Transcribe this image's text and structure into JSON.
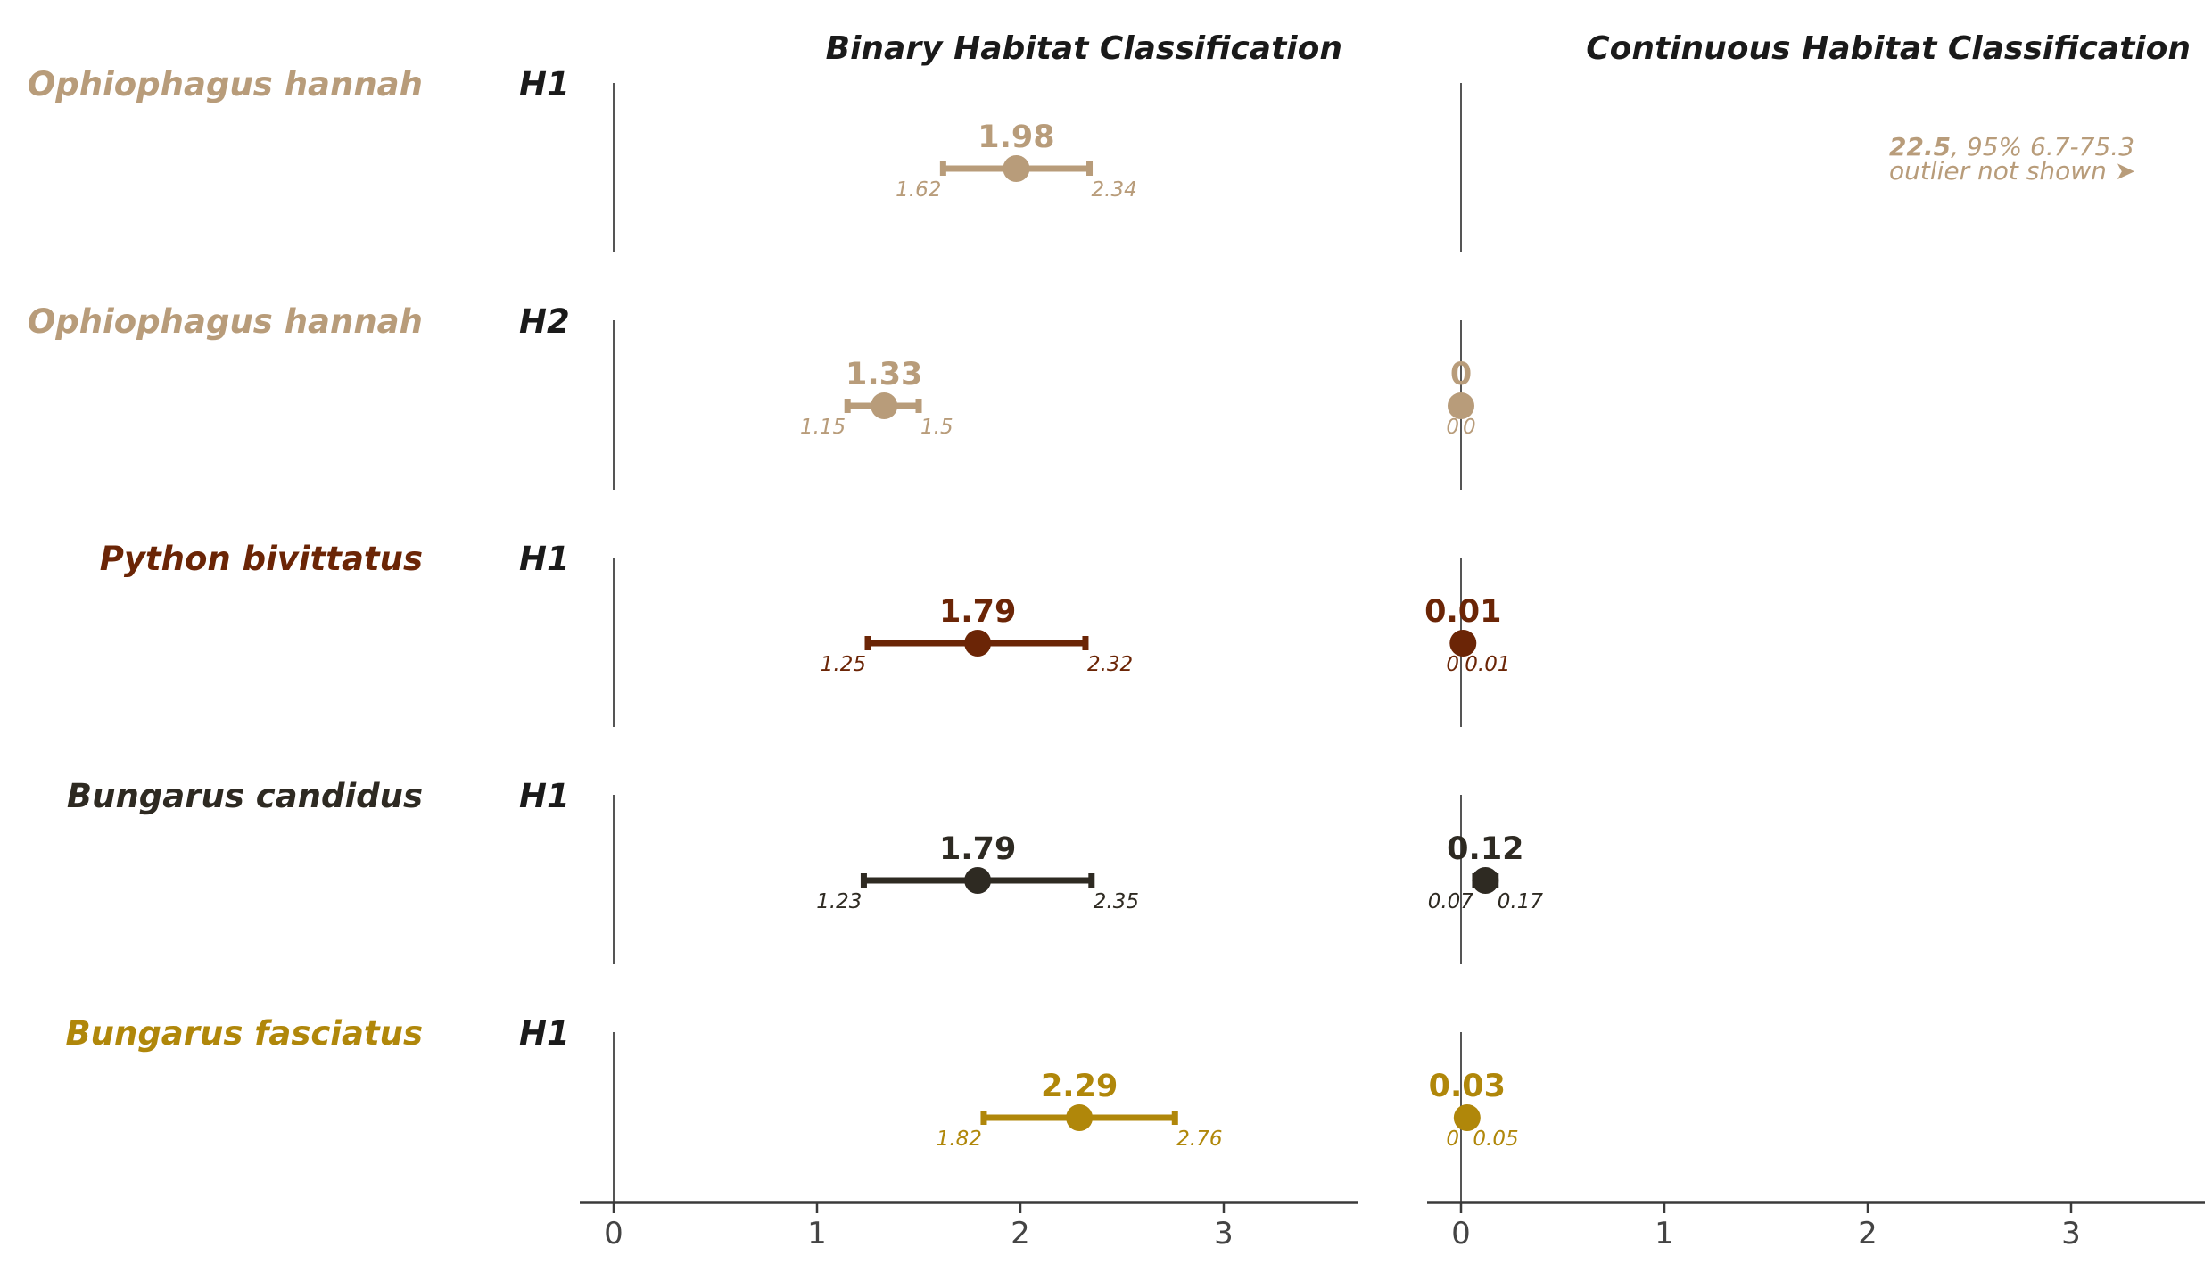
{
  "chart_data": {
    "type": "scatter",
    "subtype": "forest-plot-with-confidence-intervals",
    "panels": [
      {
        "title": "Binary Habitat Classification",
        "xlim": [
          -0.17,
          3.65
        ],
        "xticks": [
          "0",
          "1",
          "2",
          "3"
        ]
      },
      {
        "title": "Continuous Habitat Classification",
        "xlim": [
          -0.17,
          3.65
        ],
        "xticks": [
          "0",
          "1",
          "2",
          "3"
        ]
      }
    ],
    "rows": [
      {
        "species": "Ophiophagus hannah",
        "hypothesis": "H1",
        "color": "#b89c7a",
        "binary": {
          "estimate": 1.98,
          "low": 1.62,
          "high": 2.34,
          "estimate_label": "1.98",
          "low_label": "1.62",
          "high_label": "2.34"
        },
        "continuous": {
          "outlier": true,
          "estimate_label": "22.5",
          "ci_note": ", 95% 6.7-75.3",
          "note": "outlier not shown ➤"
        }
      },
      {
        "species": "Ophiophagus hannah",
        "hypothesis": "H2",
        "color": "#b89c7a",
        "binary": {
          "estimate": 1.33,
          "low": 1.15,
          "high": 1.5,
          "estimate_label": "1.33",
          "low_label": "1.15",
          "high_label": "1.5"
        },
        "continuous": {
          "estimate": 0,
          "low": 0,
          "high": 0,
          "estimate_label": "0",
          "low_label": "0",
          "high_label": "0"
        }
      },
      {
        "species": "Python bivittatus",
        "hypothesis": "H1",
        "color": "#6b2506",
        "binary": {
          "estimate": 1.79,
          "low": 1.25,
          "high": 2.32,
          "estimate_label": "1.79",
          "low_label": "1.25",
          "high_label": "2.32"
        },
        "continuous": {
          "estimate": 0.01,
          "low": 0,
          "high": 0.01,
          "estimate_label": "0.01",
          "low_label": "0",
          "high_label": "0.01"
        }
      },
      {
        "species": "Bungarus candidus",
        "hypothesis": "H1",
        "color": "#2e2a22",
        "binary": {
          "estimate": 1.79,
          "low": 1.23,
          "high": 2.35,
          "estimate_label": "1.79",
          "low_label": "1.23",
          "high_label": "2.35"
        },
        "continuous": {
          "estimate": 0.12,
          "low": 0.07,
          "high": 0.17,
          "estimate_label": "0.12",
          "low_label": "0.07",
          "high_label": "0.17"
        }
      },
      {
        "species": "Bungarus fasciatus",
        "hypothesis": "H1",
        "color": "#b0870a",
        "binary": {
          "estimate": 2.29,
          "low": 1.82,
          "high": 2.76,
          "estimate_label": "2.29",
          "low_label": "1.82",
          "high_label": "2.76"
        },
        "continuous": {
          "estimate": 0.03,
          "low": 0,
          "high": 0.05,
          "estimate_label": "0.03",
          "low_label": "0",
          "high_label": "0.05"
        }
      }
    ],
    "reference_line": 0,
    "grid": false,
    "legend": "none"
  }
}
